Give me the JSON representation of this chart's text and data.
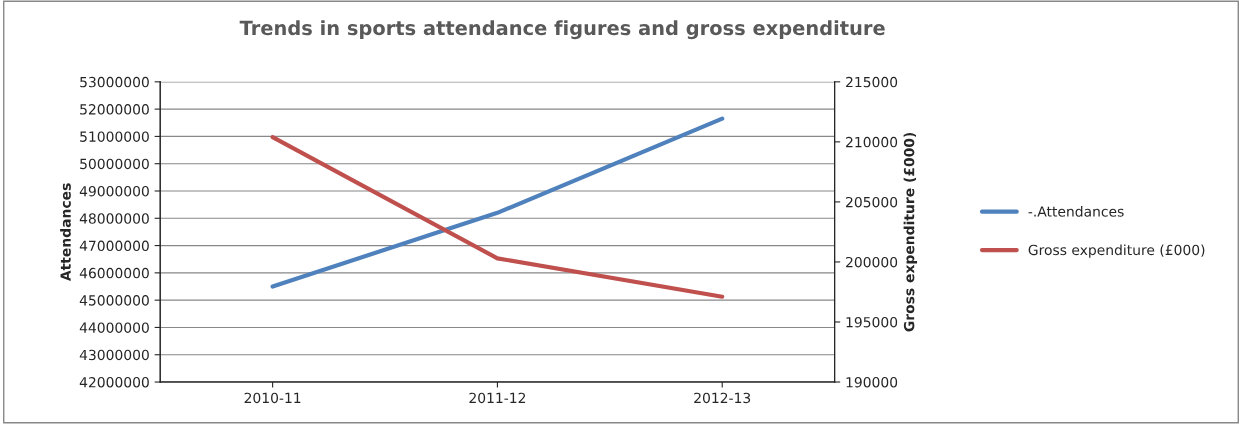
{
  "chart_data": {
    "type": "line",
    "title": "Trends in sports attendance figures and gross expenditure",
    "categories": [
      "2010-11",
      "2011-12",
      "2012-13"
    ],
    "series": [
      {
        "name": "-.Attendances",
        "color": "#4f81bd",
        "values": [
          45500000,
          48200000,
          51650000
        ]
      },
      {
        "name": "Gross expenditure (£000)",
        "color": "#c0504d",
        "axis": "y2",
        "values": [
          210400,
          200300,
          197100
        ]
      }
    ],
    "ylabel": "Attendances",
    "y2label": "Gross expenditure (£000)",
    "ylim": [
      42000000,
      53000000
    ],
    "yticks": [
      42000000,
      43000000,
      44000000,
      45000000,
      46000000,
      47000000,
      48000000,
      49000000,
      50000000,
      51000000,
      52000000,
      53000000
    ],
    "y2lim": [
      190000,
      215000
    ],
    "y2ticks": [
      190000,
      195000,
      200000,
      205000,
      210000,
      215000
    ],
    "grid": "y",
    "legend": "right",
    "marker": "none",
    "line_style": "solid"
  }
}
